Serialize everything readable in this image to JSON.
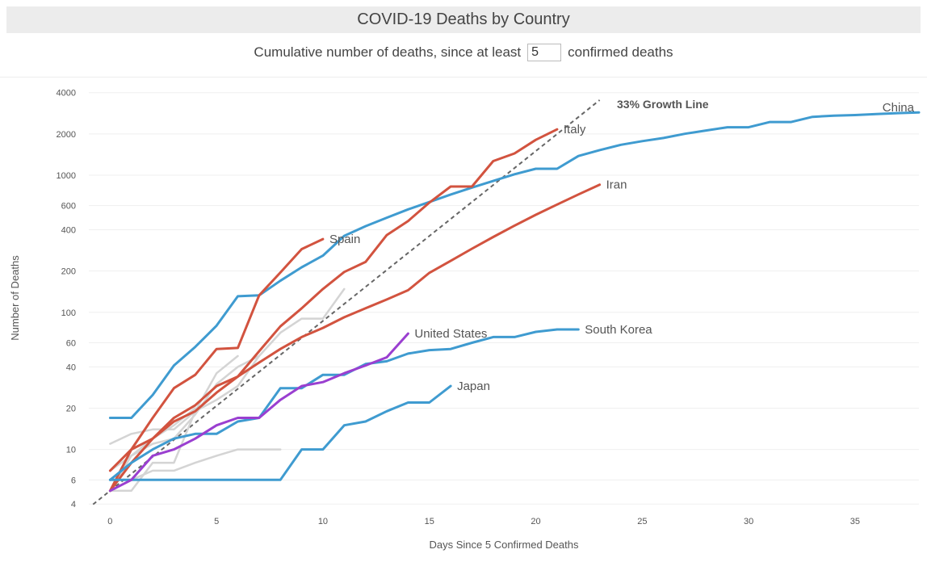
{
  "header": {
    "title": "COVID-19 Deaths by Country",
    "subtitle_prefix": "Cumulative number of deaths, since at least",
    "threshold_value": "5",
    "subtitle_suffix": "confirmed deaths"
  },
  "chart_data": {
    "type": "line",
    "xlabel": "Days Since 5 Confirmed Deaths",
    "ylabel": "Number of Deaths",
    "y_scale": "log",
    "xlim": [
      -1,
      38
    ],
    "ylim": [
      3.6,
      4500
    ],
    "x_ticks": [
      0,
      5,
      10,
      15,
      20,
      25,
      30,
      35
    ],
    "y_ticks": [
      4,
      6,
      10,
      20,
      40,
      60,
      100,
      200,
      400,
      600,
      1000,
      2000,
      4000
    ],
    "grid": "horizontal",
    "colors": {
      "europe": "#d2533f",
      "asia": "#3f9bd0",
      "us": "#9a3fd0",
      "other": "#d4d4d4",
      "growth_line": "#666666"
    },
    "growth_line": {
      "label": "33% Growth Line",
      "start": [
        0,
        5
      ],
      "rate": 1.33
    },
    "series": [
      {
        "name": "China",
        "color": "asia",
        "x": [
          0,
          1,
          2,
          3,
          4,
          5,
          6,
          7,
          8,
          9,
          10,
          11,
          12,
          13,
          14,
          15,
          16,
          17,
          18,
          19,
          20,
          21,
          22,
          23,
          24,
          25,
          26,
          27,
          28,
          29,
          30,
          31,
          32,
          33,
          34,
          35,
          36,
          37,
          38
        ],
        "values": [
          17,
          17,
          25,
          41,
          56,
          80,
          131,
          133,
          170,
          213,
          259,
          361,
          425,
          490,
          563,
          637,
          723,
          812,
          908,
          1016,
          1113,
          1113,
          1380,
          1523,
          1665,
          1770,
          1868,
          2004,
          2118,
          2236,
          2236,
          2442,
          2442,
          2663,
          2715,
          2744,
          2788,
          2835,
          2870
        ]
      },
      {
        "name": "Italy",
        "color": "europe",
        "x": [
          0,
          1,
          2,
          3,
          4,
          5,
          6,
          7,
          8,
          9,
          10,
          11,
          12,
          13,
          14,
          15,
          16,
          17,
          18,
          19,
          20,
          21
        ],
        "values": [
          7,
          10,
          12,
          17,
          21,
          29,
          34,
          52,
          79,
          107,
          148,
          197,
          233,
          366,
          463,
          631,
          827,
          827,
          1266,
          1441,
          1809,
          2158
        ]
      },
      {
        "name": "Iran",
        "color": "europe",
        "x": [
          0,
          1,
          2,
          3,
          4,
          5,
          6,
          7,
          8,
          9,
          10,
          11,
          12,
          13,
          14,
          15,
          16,
          17,
          18,
          19,
          20,
          21,
          22,
          23
        ],
        "values": [
          5,
          8,
          12,
          16,
          19,
          26,
          34,
          43,
          54,
          66,
          77,
          92,
          107,
          124,
          145,
          194,
          237,
          291,
          354,
          429,
          514,
          611,
          724,
          853
        ]
      },
      {
        "name": "Spain",
        "color": "europe",
        "x": [
          0,
          1,
          2,
          3,
          4,
          5,
          6,
          7,
          8,
          9,
          10
        ],
        "values": [
          5,
          10,
          17,
          28,
          35,
          54,
          55,
          133,
          195,
          289,
          342
        ]
      },
      {
        "name": "South Korea",
        "color": "asia",
        "x": [
          0,
          1,
          2,
          3,
          4,
          5,
          6,
          7,
          8,
          9,
          10,
          11,
          12,
          13,
          14,
          15,
          16,
          17,
          18,
          19,
          20,
          21,
          22
        ],
        "values": [
          6,
          8,
          10,
          12,
          13,
          13,
          16,
          17,
          28,
          28,
          35,
          35,
          42,
          44,
          50,
          53,
          54,
          60,
          66,
          66,
          72,
          75,
          75
        ]
      },
      {
        "name": "Japan",
        "color": "asia",
        "x": [
          0,
          1,
          2,
          3,
          4,
          5,
          6,
          7,
          8,
          9,
          10,
          11,
          12,
          13,
          14,
          15,
          16
        ],
        "values": [
          6,
          6,
          6,
          6,
          6,
          6,
          6,
          6,
          6,
          10,
          10,
          15,
          16,
          19,
          22,
          22,
          29
        ]
      },
      {
        "name": "United States",
        "color": "us",
        "x": [
          0,
          1,
          2,
          3,
          4,
          5,
          6,
          7,
          8,
          9,
          10,
          11,
          12,
          13,
          14
        ],
        "values": [
          5,
          6,
          9,
          10,
          12,
          15,
          17,
          17,
          23,
          29,
          31,
          36,
          41,
          47,
          70
        ]
      },
      {
        "name": "",
        "color": "other",
        "x": [
          0,
          1,
          2,
          3,
          4,
          5,
          6,
          7,
          8,
          9,
          10,
          11
        ],
        "values": [
          11,
          13,
          14,
          14,
          19,
          23,
          29,
          48,
          71,
          90,
          90,
          148
        ]
      },
      {
        "name": "",
        "color": "other",
        "x": [
          0,
          1,
          2,
          3,
          4,
          5,
          6,
          7
        ],
        "values": [
          7,
          9,
          11,
          12,
          18,
          30,
          40,
          48
        ]
      },
      {
        "name": "",
        "color": "other",
        "x": [
          0,
          1,
          2,
          3,
          4,
          5,
          6,
          7,
          8
        ],
        "values": [
          5,
          6,
          7,
          7,
          8,
          9,
          10,
          10,
          10
        ]
      },
      {
        "name": "",
        "color": "other",
        "x": [
          0,
          1,
          2,
          3,
          4,
          5,
          6
        ],
        "values": [
          5,
          5,
          8,
          8,
          19,
          36,
          48
        ]
      },
      {
        "name": "",
        "color": "other",
        "x": [
          0,
          1,
          2,
          3,
          4
        ],
        "values": [
          5,
          9,
          12,
          15,
          20
        ]
      }
    ]
  }
}
